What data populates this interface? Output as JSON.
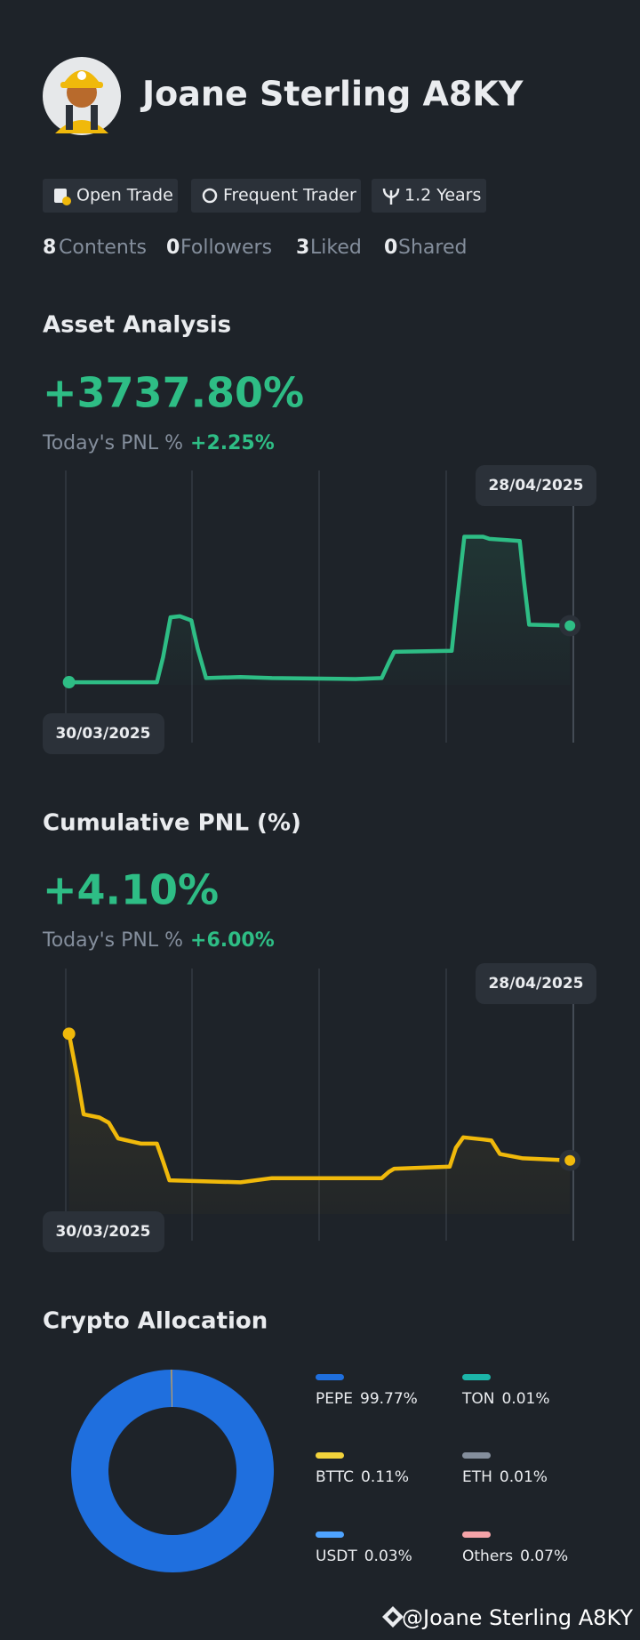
{
  "profile": {
    "name": "Joane Sterling A8KY",
    "badges": [
      "Open Trade",
      "Frequent Trader",
      "1.2 Years"
    ],
    "stats": [
      {
        "count": 8,
        "label": "Contents"
      },
      {
        "count": 0,
        "label": "Followers"
      },
      {
        "count": 3,
        "label": "Liked"
      },
      {
        "count": 0,
        "label": "Shared"
      }
    ]
  },
  "asset_analysis": {
    "title": "Asset Analysis",
    "value": "+3737.80%",
    "today_label": "Today's PNL %",
    "today_value": "+2.25%",
    "start_date": "30/03/2025",
    "end_date": "28/04/2025"
  },
  "cumulative_pnl": {
    "title": "Cumulative PNL (%)",
    "value": "+4.10%",
    "today_label": "Today's PNL %",
    "today_value": "+6.00%",
    "start_date": "30/03/2025",
    "end_date": "28/04/2025"
  },
  "crypto_allocation": {
    "title": "Crypto Allocation",
    "type": "pie",
    "categories": [
      "PEPE",
      "TON",
      "BTTC",
      "ETH",
      "USDT",
      "Others"
    ],
    "values": [
      99.77,
      0.01,
      0.11,
      0.01,
      0.03,
      0.07
    ],
    "value_labels": [
      "99.77%",
      "0.01%",
      "0.11%",
      "0.01%",
      "0.03%",
      "0.07%"
    ],
    "colors": [
      "#1f6fde",
      "#1cb5a9",
      "#f3d33b",
      "#848e9c",
      "#4ea3ff",
      "#f5a3a8"
    ]
  },
  "watermark": "@Joane Sterling A8KY"
}
